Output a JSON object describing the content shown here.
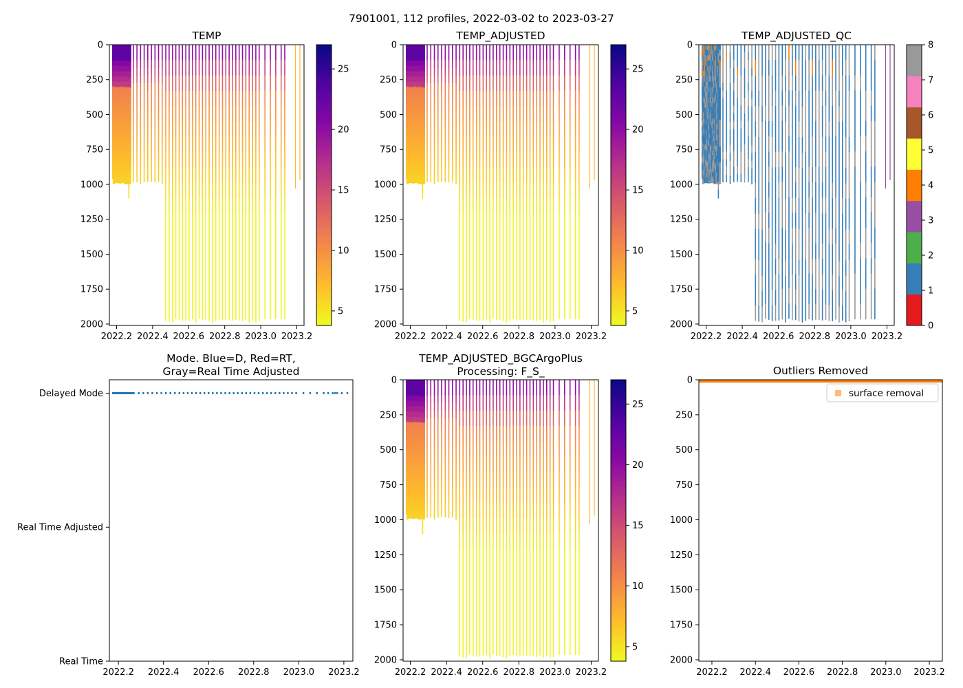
{
  "suptitle": "7901001, 112 profiles, 2022-03-02 to 2023-03-27",
  "colors": {
    "frame": "#000000",
    "qc_palette": [
      "#e41a1c",
      "#377eb8",
      "#4daf4a",
      "#984ea3",
      "#ff7f00",
      "#ffff33",
      "#a65628",
      "#f781bf",
      "#999999"
    ],
    "mode_delayed": "#1f77b4",
    "outlier": "#ff7f0e",
    "outlier_legend": "#ffbb78"
  },
  "chart_data": [
    {
      "id": "temp",
      "type": "heatmap",
      "title": "TEMP",
      "xlim": [
        2022.16,
        2023.24
      ],
      "ylim": [
        2010,
        0
      ],
      "xticks": [
        "2022.2",
        "2022.4",
        "2022.6",
        "2022.8",
        "2023.0",
        "2023.2"
      ],
      "yticks": [
        "0",
        "250",
        "500",
        "750",
        "1000",
        "1250",
        "1500",
        "1750",
        "2000"
      ],
      "colorbar": {
        "cmap": "plasma_r",
        "range": [
          3.8,
          27
        ],
        "ticks": [
          "5",
          "10",
          "15",
          "20",
          "25"
        ]
      }
    },
    {
      "id": "temp_adj",
      "type": "heatmap",
      "title": "TEMP_ADJUSTED",
      "xlim": [
        2022.16,
        2023.24
      ],
      "ylim": [
        2010,
        0
      ],
      "xticks": [
        "2022.2",
        "2022.4",
        "2022.6",
        "2022.8",
        "2023.0",
        "2023.2"
      ],
      "yticks": [
        "0",
        "250",
        "500",
        "750",
        "1000",
        "1250",
        "1500",
        "1750",
        "2000"
      ],
      "colorbar": {
        "cmap": "plasma_r",
        "range": [
          3.8,
          27
        ],
        "ticks": [
          "5",
          "10",
          "15",
          "20",
          "25"
        ]
      }
    },
    {
      "id": "temp_qc",
      "type": "heatmap",
      "title": "TEMP_ADJUSTED_QC",
      "xlim": [
        2022.16,
        2023.24
      ],
      "ylim": [
        2010,
        0
      ],
      "xticks": [
        "2022.2",
        "2022.4",
        "2022.6",
        "2022.8",
        "2023.0",
        "2023.2"
      ],
      "yticks": [
        "0",
        "250",
        "500",
        "750",
        "1000",
        "1250",
        "1500",
        "1750",
        "2000"
      ],
      "colorbar": {
        "cmap": "qc",
        "range": [
          0,
          8
        ],
        "ticks": [
          "0",
          "1",
          "2",
          "3",
          "4",
          "5",
          "6",
          "7",
          "8"
        ]
      }
    },
    {
      "id": "mode",
      "type": "scatter",
      "title_lines": [
        "Mode. Blue=D, Red=RT,",
        "Gray=Real Time Adjusted"
      ],
      "xlim": [
        2022.16,
        2023.24
      ],
      "ylim": [
        0,
        2.1
      ],
      "xticks": [
        "2022.2",
        "2022.4",
        "2022.6",
        "2022.8",
        "2023.0",
        "2023.2"
      ],
      "yticks": [
        {
          "value": 2,
          "label": "Delayed Mode"
        },
        {
          "value": 1,
          "label": "Real Time Adjusted"
        },
        {
          "value": 0,
          "label": "Real Time"
        }
      ],
      "series": [
        {
          "name": "Delayed Mode",
          "value": 2
        }
      ]
    },
    {
      "id": "temp_bgc",
      "type": "heatmap",
      "title_lines": [
        "TEMP_ADJUSTED_BGCArgoPlus",
        "Processing: F_S_"
      ],
      "xlim": [
        2022.16,
        2023.24
      ],
      "ylim": [
        2010,
        0
      ],
      "xticks": [
        "2022.2",
        "2022.4",
        "2022.6",
        "2022.8",
        "2023.0",
        "2023.2"
      ],
      "yticks": [
        "0",
        "250",
        "500",
        "750",
        "1000",
        "1250",
        "1500",
        "1750",
        "2000"
      ],
      "colorbar": {
        "cmap": "plasma_r",
        "range": [
          3.8,
          27
        ],
        "ticks": [
          "5",
          "10",
          "15",
          "20",
          "25"
        ]
      }
    },
    {
      "id": "outliers",
      "type": "scatter",
      "title": "Outliers Removed",
      "xlim": [
        2022.14,
        2023.26
      ],
      "ylim": [
        2010,
        0
      ],
      "xticks": [
        "2022.2",
        "2022.4",
        "2022.6",
        "2022.8",
        "2023.0",
        "2023.2"
      ],
      "yticks": [
        "0",
        "250",
        "500",
        "750",
        "1000",
        "1250",
        "1500",
        "1750",
        "2000"
      ],
      "series": [
        {
          "name": "surface removal",
          "depth_range": [
            0,
            20
          ]
        }
      ],
      "legend": {
        "label": "surface removal",
        "loc": "upper right"
      }
    }
  ]
}
